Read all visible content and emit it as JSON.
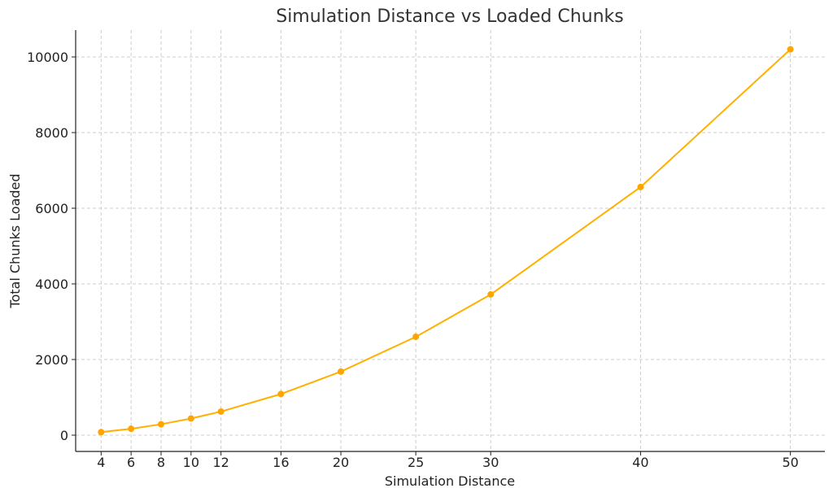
{
  "chart_data": {
    "type": "line",
    "title": "Simulation Distance vs Loaded Chunks",
    "xlabel": "Simulation Distance",
    "ylabel": "Total Chunks Loaded",
    "x": [
      4,
      6,
      8,
      10,
      12,
      16,
      20,
      25,
      30,
      40,
      50
    ],
    "y": [
      81,
      169,
      289,
      441,
      625,
      1089,
      1681,
      2601,
      3721,
      6561,
      10201
    ],
    "x_ticks": [
      4,
      6,
      8,
      10,
      12,
      16,
      20,
      25,
      30,
      40,
      50
    ],
    "y_ticks": [
      0,
      2000,
      4000,
      6000,
      8000,
      10000
    ],
    "xlim": [
      2.3,
      52.3
    ],
    "ylim": [
      -430,
      10710
    ],
    "grid": true,
    "line_color": "#FFB000",
    "marker_color": "#FFA500"
  }
}
